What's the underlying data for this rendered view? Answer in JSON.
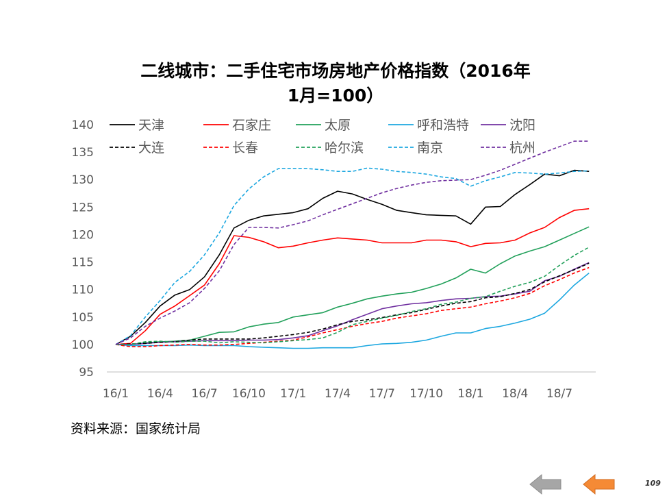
{
  "slide": {
    "title_line1": "二线城市：二手住宅市场房地产价格指数（2016年",
    "title_line2": "1月=100）",
    "source": "资料来源：国家统计局",
    "page_number": "109",
    "nav": {
      "prev_icon": "arrow-left-icon",
      "next_icon": "arrow-left-icon",
      "prev_color": "#a6a6a6",
      "next_color": "#f58a35"
    }
  },
  "chart_data": {
    "type": "line",
    "title": "二线城市：二手住宅市场房地产价格指数（2016年1月=100）",
    "ylim": [
      95,
      140
    ],
    "yticks": [
      95,
      100,
      105,
      110,
      115,
      120,
      125,
      130,
      135,
      140
    ],
    "x_tick_labels": [
      "16/1",
      "16/4",
      "16/7",
      "16/10",
      "17/1",
      "17/4",
      "17/7",
      "17/10",
      "18/1",
      "18/4",
      "18/7"
    ],
    "x_tick_every": 3,
    "n_points": 33,
    "legend_position": "top",
    "grid": false,
    "series": [
      {
        "name": "天津",
        "color": "#000000",
        "dash": false,
        "values": [
          100,
          101.5,
          104,
          107,
          109,
          110,
          112.3,
          116.3,
          121.2,
          122.6,
          123.4,
          123.7,
          124,
          124.7,
          126.6,
          127.9,
          127.4,
          126.4,
          125.5,
          124.4,
          124,
          123.6,
          123.5,
          123.4,
          121.9,
          125,
          125.1,
          127.3,
          129.1,
          131,
          130.7,
          131.7,
          131.5
        ]
      },
      {
        "name": "石家庄",
        "color": "#ff0000",
        "dash": false,
        "values": [
          100,
          100.2,
          102.5,
          105.5,
          107,
          108.9,
          110.8,
          114.7,
          119.8,
          119.5,
          118.7,
          117.6,
          117.9,
          118.5,
          119,
          119.4,
          119.2,
          119,
          118.5,
          118.5,
          118.5,
          119,
          119,
          118.7,
          117.8,
          118.4,
          118.5,
          119,
          120.3,
          121.3,
          123.1,
          124.4,
          124.7
        ]
      },
      {
        "name": "太原",
        "color": "#21a05a",
        "dash": false,
        "values": [
          100,
          100,
          100.3,
          100.5,
          100.6,
          100.8,
          101.5,
          102.2,
          102.3,
          103.2,
          103.7,
          104,
          105,
          105.4,
          105.8,
          106.8,
          107.5,
          108.3,
          108.8,
          109.2,
          109.5,
          110.2,
          111,
          112.1,
          113.7,
          113,
          114.7,
          116.1,
          117,
          117.8,
          119,
          120.2,
          121.4
        ]
      },
      {
        "name": "呼和浩特",
        "color": "#1ca7e0",
        "dash": false,
        "values": [
          100,
          99.8,
          99.8,
          99.8,
          99.8,
          99.9,
          99.8,
          99.8,
          99.8,
          99.6,
          99.5,
          99.4,
          99.3,
          99.3,
          99.4,
          99.4,
          99.4,
          99.8,
          100.1,
          100.2,
          100.4,
          100.8,
          101.5,
          102.1,
          102.1,
          102.9,
          103.3,
          103.9,
          104.6,
          105.7,
          108.1,
          110.8,
          113
        ]
      },
      {
        "name": "沈阳",
        "color": "#7030a0",
        "dash": false,
        "values": [
          100,
          100,
          100.2,
          100.4,
          100.5,
          100.6,
          100.7,
          100.7,
          100.7,
          100.8,
          100.8,
          100.9,
          101.2,
          101.6,
          102.5,
          103.4,
          104.5,
          105.5,
          106.5,
          107,
          107.4,
          107.6,
          108,
          108.3,
          108.4,
          108.7,
          108.8,
          109.2,
          109.7,
          111.6,
          112.4,
          113.7,
          114.9
        ]
      },
      {
        "name": "大连",
        "color": "#000000",
        "dash": true,
        "values": [
          100,
          100.1,
          100.2,
          100.4,
          100.5,
          100.8,
          101,
          101,
          101,
          101,
          101.2,
          101.5,
          101.8,
          102.2,
          102.8,
          103.6,
          104.2,
          104.5,
          104.9,
          105.4,
          105.8,
          106.4,
          107,
          107.5,
          107.8,
          108.5,
          108.7,
          109.3,
          110,
          111.4,
          112.5,
          113.6,
          114.8
        ]
      },
      {
        "name": "长春",
        "color": "#ff0000",
        "dash": true,
        "values": [
          100,
          99.6,
          99.6,
          99.8,
          99.9,
          100,
          99.9,
          99.9,
          100,
          100.2,
          100.4,
          100.6,
          100.8,
          101.4,
          102.1,
          102.7,
          103.3,
          103.8,
          104.2,
          104.8,
          105.2,
          105.6,
          106.2,
          106.5,
          106.8,
          107.4,
          107.9,
          108.5,
          109.3,
          110.7,
          111.8,
          113,
          114
        ]
      },
      {
        "name": "哈尔滨",
        "color": "#21a05a",
        "dash": true,
        "values": [
          100,
          100,
          100.5,
          100.6,
          100.4,
          100.6,
          100.6,
          100.3,
          100.5,
          100.4,
          100.3,
          100.5,
          100.7,
          100.9,
          101.2,
          102.2,
          103.6,
          104.2,
          104.8,
          105.3,
          106,
          106.5,
          107.3,
          107.7,
          108.4,
          108.7,
          109.7,
          110.6,
          111.3,
          112.4,
          114.4,
          116.2,
          117.7
        ]
      },
      {
        "name": "南京",
        "color": "#1ca7e0",
        "dash": true,
        "values": [
          100,
          101.6,
          105,
          108,
          111.3,
          113.3,
          116.3,
          120.3,
          125.3,
          128.3,
          130.5,
          132,
          132,
          132,
          131.8,
          131.5,
          131.5,
          132.1,
          131.9,
          131.5,
          131.3,
          131,
          130.5,
          130.2,
          128.8,
          129.8,
          130.5,
          131.3,
          131.2,
          131,
          131.2,
          131.5,
          131.6
        ]
      },
      {
        "name": "杭州",
        "color": "#7030a0",
        "dash": true,
        "values": [
          100,
          101.2,
          103.3,
          104.8,
          106.1,
          107.6,
          110.2,
          113.4,
          118.2,
          121.3,
          121.3,
          121.2,
          121.8,
          122.5,
          123.6,
          124.6,
          125.6,
          126.6,
          127.6,
          128.4,
          129,
          129.5,
          129.8,
          129.9,
          130,
          130.8,
          131.7,
          132.8,
          133.9,
          135,
          136,
          137,
          137
        ]
      }
    ]
  }
}
